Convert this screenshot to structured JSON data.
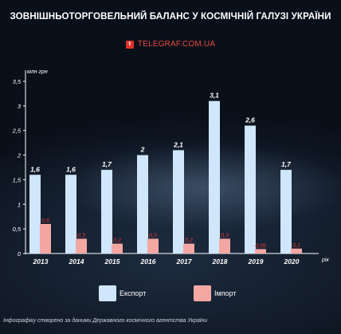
{
  "header": {
    "title": "ЗОВНІШНЬОТОРГОВЕЛЬНИЙ БАЛАНС У КОСМІЧНІЙ ГАЛУЗІ УКРАЇНИ",
    "brand_icon": "telegraf-logo-icon",
    "brand": "TELEGRAF.COM.UA"
  },
  "colors": {
    "export": "#cfe6fb",
    "import": "#f3a7a3",
    "import_label": "#e23a33",
    "axis": "#ffffff"
  },
  "chart_data": {
    "type": "bar",
    "ylabel": "млн грн",
    "xlabel": "рік",
    "ylim": [
      0,
      3.5
    ],
    "yticks": [
      "0",
      "0,5",
      "1",
      "1,5",
      "2",
      "2,5",
      "3",
      "3,5"
    ],
    "categories": [
      "2013",
      "2014",
      "2015",
      "2016",
      "2017",
      "2018",
      "2019",
      "2020"
    ],
    "series": [
      {
        "name": "Експорт",
        "values": [
          1.6,
          1.6,
          1.7,
          2,
          2.1,
          3.1,
          2.6,
          1.7
        ],
        "labels": [
          "1,6",
          "1,6",
          "1,7",
          "2",
          "2,1",
          "3,1",
          "2,6",
          "1,7"
        ]
      },
      {
        "name": "Імпорт",
        "values": [
          0.6,
          0.3,
          0.2,
          0.3,
          0.2,
          0.3,
          0.09,
          0.1
        ],
        "labels": [
          "0,6",
          "0,3",
          "0,2",
          "0,3",
          "0,2",
          "0,3",
          "0,09",
          "0,1"
        ]
      }
    ],
    "grid": false,
    "legend": "bottom"
  },
  "footer": {
    "note": "Інфографіку створено за даними Державного космічного агентства України"
  }
}
